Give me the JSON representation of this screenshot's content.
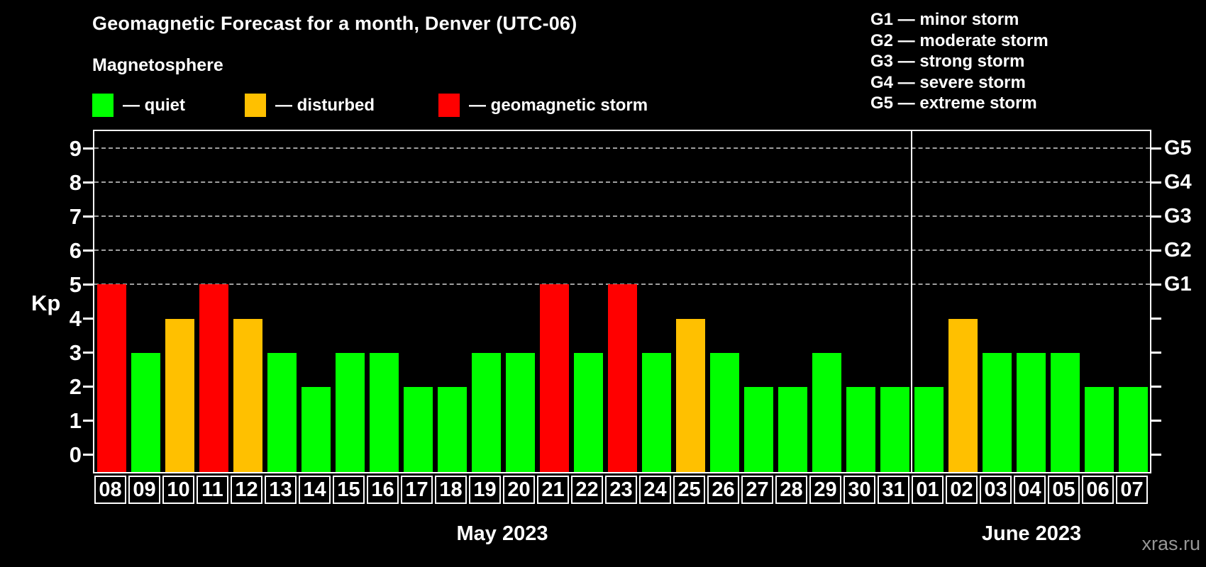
{
  "header": {
    "title": "Geomagnetic Forecast for a month, Denver (UTC-06)",
    "subtitle": "Magnetosphere",
    "legend": [
      {
        "key": "quiet",
        "label": "— quiet",
        "color": "#00ff00"
      },
      {
        "key": "disturbed",
        "label": "— disturbed",
        "color": "#ffc000"
      },
      {
        "key": "storm",
        "label": "— geomagnetic storm",
        "color": "#ff0000"
      }
    ],
    "g_scale": [
      "G1 — minor storm",
      "G2 — moderate storm",
      "G3 — strong storm",
      "G4 — severe storm",
      "G5 — extreme storm"
    ]
  },
  "chart_data": {
    "type": "bar",
    "title": "Geomagnetic Forecast for a month, Denver (UTC-06)",
    "ylabel": "Kp",
    "ylim": [
      -0.5,
      9.5
    ],
    "yticks": [
      0,
      1,
      2,
      3,
      4,
      5,
      6,
      7,
      8,
      9
    ],
    "gridlines_at_kp": [
      5,
      6,
      7,
      8,
      9
    ],
    "grid": "dashed horizontal at Kp 5-9 only",
    "right_axis": [
      {
        "kp": 5,
        "label": "G1"
      },
      {
        "kp": 6,
        "label": "G2"
      },
      {
        "kp": 7,
        "label": "G3"
      },
      {
        "kp": 8,
        "label": "G4"
      },
      {
        "kp": 9,
        "label": "G5"
      }
    ],
    "categories": [
      "08",
      "09",
      "10",
      "11",
      "12",
      "13",
      "14",
      "15",
      "16",
      "17",
      "18",
      "19",
      "20",
      "21",
      "22",
      "23",
      "24",
      "25",
      "26",
      "27",
      "28",
      "29",
      "30",
      "31",
      "01",
      "02",
      "03",
      "04",
      "05",
      "06",
      "07"
    ],
    "values": [
      5,
      3,
      4,
      5,
      4,
      3,
      2,
      3,
      3,
      2,
      2,
      3,
      3,
      5,
      3,
      5,
      3,
      4,
      3,
      2,
      2,
      3,
      2,
      2,
      2,
      4,
      3,
      3,
      3,
      2,
      2
    ],
    "statuses": [
      "storm",
      "quiet",
      "disturbed",
      "storm",
      "disturbed",
      "quiet",
      "quiet",
      "quiet",
      "quiet",
      "quiet",
      "quiet",
      "quiet",
      "quiet",
      "storm",
      "quiet",
      "storm",
      "quiet",
      "disturbed",
      "quiet",
      "quiet",
      "quiet",
      "quiet",
      "quiet",
      "quiet",
      "quiet",
      "disturbed",
      "quiet",
      "quiet",
      "quiet",
      "quiet",
      "quiet"
    ],
    "status_colors": {
      "quiet": "#00ff00",
      "disturbed": "#ffc000",
      "storm": "#ff0000"
    },
    "months": [
      {
        "label": "May 2023",
        "day_count": 24
      },
      {
        "label": "June 2023",
        "day_count": 7
      }
    ]
  },
  "footer": {
    "watermark": "xras.ru"
  }
}
